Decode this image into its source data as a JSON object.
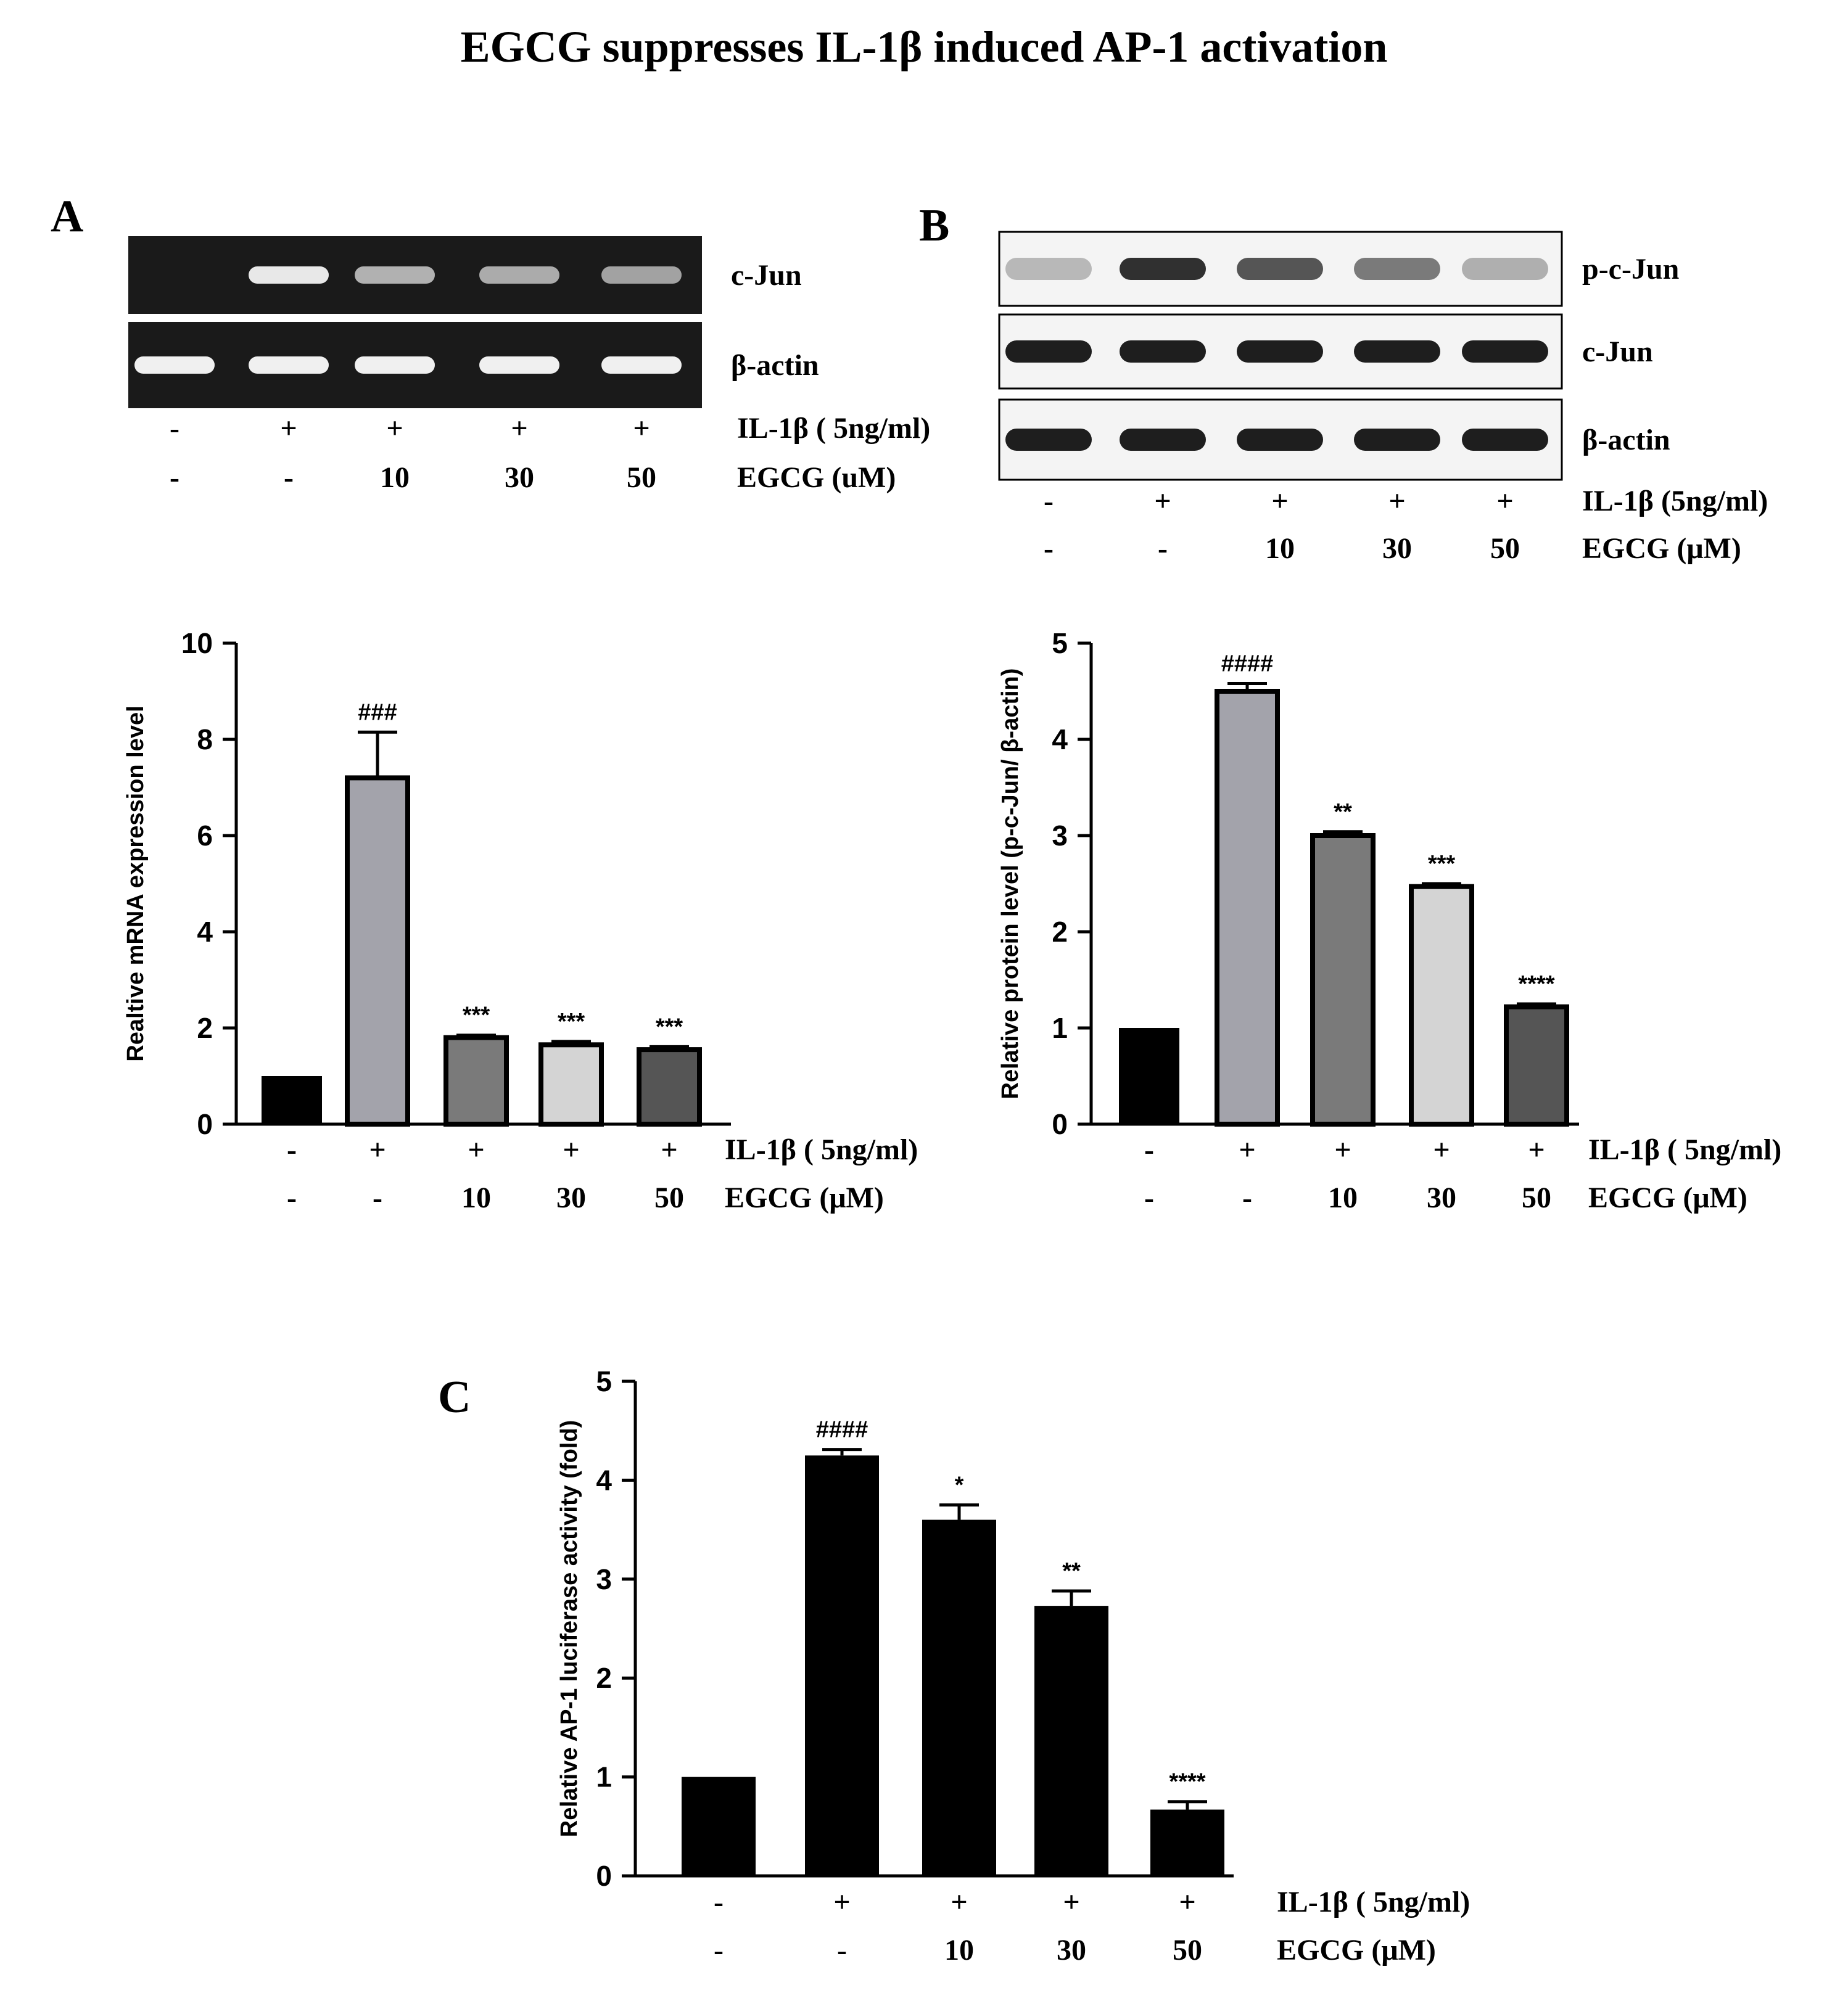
{
  "figure": {
    "title": "EGCG suppresses  IL-1β induced AP-1 activation",
    "colors": {
      "ink": "#000000",
      "gel_background": "#1a1a1a",
      "gel_band": "#f0f0f0",
      "blot_background": "#f4f4f4",
      "blot_band": "#1e1e1e",
      "bar_ctrl": "#000000",
      "bar_il1b": "#a3a3ab",
      "bar_10": "#7a7a7a",
      "bar_30": "#d4d4d4",
      "bar_50": "#555555"
    }
  },
  "panel_a": {
    "letter": "A",
    "gel_rows": [
      {
        "label": "c-Jun",
        "band_intensity": [
          0.0,
          0.95,
          0.55,
          0.5,
          0.45
        ]
      },
      {
        "label": "β-actin",
        "band_intensity": [
          1.0,
          1.0,
          1.0,
          1.0,
          1.0
        ]
      }
    ],
    "treatments": {
      "il1b_label": "IL-1β ( 5ng/ml)",
      "il1b": [
        "-",
        "+",
        "+",
        "+",
        "+"
      ],
      "egcg_label": "EGCG (uM)",
      "egcg": [
        "-",
        "-",
        "10",
        "30",
        "50"
      ]
    }
  },
  "panel_b": {
    "letter": "B",
    "blot_rows": [
      {
        "label": "p-c-Jun",
        "band_intensity": [
          0.15,
          0.9,
          0.7,
          0.5,
          0.2
        ]
      },
      {
        "label": "c-Jun",
        "band_intensity": [
          1.0,
          1.0,
          1.0,
          1.0,
          1.0
        ]
      },
      {
        "label": "β-actin",
        "band_intensity": [
          1.0,
          1.0,
          1.0,
          1.0,
          1.0
        ]
      }
    ],
    "treatments": {
      "il1b_label": "IL-1β (5ng/ml)",
      "il1b": [
        "-",
        "+",
        "+",
        "+",
        "+"
      ],
      "egcg_label": "EGCG (μM)",
      "egcg": [
        "-",
        "-",
        "10",
        "30",
        "50"
      ]
    }
  },
  "chart_data": [
    {
      "id": "chart_a",
      "type": "bar",
      "ylabel": "Realtive mRNA expression level",
      "ylim": [
        0,
        10
      ],
      "yticks": [
        0,
        2,
        4,
        6,
        8,
        10
      ],
      "categories": [
        "1",
        "2",
        "3",
        "4",
        "5"
      ],
      "values": [
        1.0,
        7.2,
        1.8,
        1.65,
        1.55
      ],
      "errors": [
        0,
        0.95,
        0.05,
        0.07,
        0.06
      ],
      "annotations": [
        "",
        "###",
        "***",
        "***",
        "***"
      ],
      "colors": [
        "#000000",
        "#a3a3ab",
        "#7a7a7a",
        "#d4d4d4",
        "#555555"
      ],
      "treatments": {
        "il1b_label": "IL-1β ( 5ng/ml)",
        "il1b": [
          "-",
          "+",
          "+",
          "+",
          "+"
        ],
        "egcg_label": "EGCG (μM)",
        "egcg": [
          "-",
          "-",
          "10",
          "30",
          "50"
        ]
      }
    },
    {
      "id": "chart_b",
      "type": "bar",
      "ylabel": "Relative protein level (p-c-Jun/ β-actin)",
      "ylim": [
        0,
        5
      ],
      "yticks": [
        0,
        1,
        2,
        3,
        4,
        5
      ],
      "categories": [
        "1",
        "2",
        "3",
        "4",
        "5"
      ],
      "values": [
        1.0,
        4.5,
        3.0,
        2.47,
        1.22
      ],
      "errors": [
        0,
        0.08,
        0.04,
        0.03,
        0.03
      ],
      "annotations": [
        "",
        "####",
        "**",
        "***",
        "****"
      ],
      "colors": [
        "#000000",
        "#a3a3ab",
        "#7a7a7a",
        "#d4d4d4",
        "#555555"
      ],
      "treatments": {
        "il1b_label": "IL-1β ( 5ng/ml)",
        "il1b": [
          "-",
          "+",
          "+",
          "+",
          "+"
        ],
        "egcg_label": "EGCG (μM)",
        "egcg": [
          "-",
          "-",
          "10",
          "30",
          "50"
        ]
      }
    },
    {
      "id": "chart_c",
      "type": "bar",
      "panel_letter": "C",
      "ylabel": "Relative AP-1 luciferase activity (fold)",
      "ylim": [
        0,
        5
      ],
      "yticks": [
        0,
        1,
        2,
        3,
        4,
        5
      ],
      "categories": [
        "1",
        "2",
        "3",
        "4",
        "5"
      ],
      "values": [
        1.0,
        4.25,
        3.6,
        2.73,
        0.67
      ],
      "errors": [
        0,
        0.06,
        0.15,
        0.15,
        0.08
      ],
      "annotations": [
        "",
        "####",
        "*",
        "**",
        "****"
      ],
      "colors": [
        "#000000",
        "#000000",
        "#000000",
        "#000000",
        "#000000"
      ],
      "treatments": {
        "il1b_label": "IL-1β ( 5ng/ml)",
        "il1b": [
          "-",
          "+",
          "+",
          "+",
          "+"
        ],
        "egcg_label": "EGCG (μM)",
        "egcg": [
          "-",
          "-",
          "10",
          "30",
          "50"
        ]
      }
    }
  ]
}
